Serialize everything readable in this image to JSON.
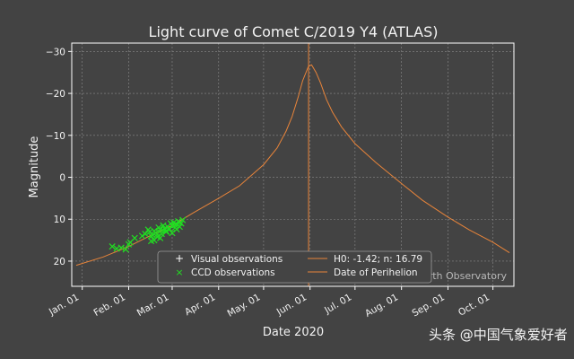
{
  "chart_data": {
    "type": "line",
    "title": "Light curve of Comet C/2019 Y4 (ATLAS)",
    "xlabel": "Date 2020",
    "ylabel": "Magnitude",
    "x_axis": "date",
    "xlim": [
      "2019-12-25",
      "2020-10-15"
    ],
    "ylim": [
      26,
      -32
    ],
    "y_inverted": true,
    "y_ticks": [
      -30,
      -20,
      -10,
      0,
      10,
      20
    ],
    "y_tick_labels": [
      "−30",
      "−20",
      "−10",
      "0",
      "10",
      "20"
    ],
    "x_ticks": [
      "2020-01-01",
      "2020-02-01",
      "2020-03-01",
      "2020-04-01",
      "2020-05-01",
      "2020-06-01",
      "2020-07-01",
      "2020-08-01",
      "2020-09-01",
      "2020-10-01"
    ],
    "x_tick_labels": [
      "Jan. 01",
      "Feb. 01",
      "Mar. 01",
      "Apr. 01",
      "May. 01",
      "Jun. 01",
      "Jul. 01",
      "Aug. 01",
      "Sep. 01",
      "Oct. 01"
    ],
    "grid": true,
    "legend_placement": "bottom-center",
    "series": [
      {
        "name": "H0: -1.42; n: 16.79",
        "kind": "line",
        "color": "#e8843a",
        "x": [
          "2019-12-28",
          "2020-01-15",
          "2020-02-01",
          "2020-02-15",
          "2020-03-01",
          "2020-03-15",
          "2020-04-01",
          "2020-04-15",
          "2020-05-01",
          "2020-05-10",
          "2020-05-16",
          "2020-05-20",
          "2020-05-24",
          "2020-05-27",
          "2020-05-31",
          "2020-06-02",
          "2020-06-05",
          "2020-06-08",
          "2020-06-12",
          "2020-06-16",
          "2020-06-22",
          "2020-07-01",
          "2020-07-15",
          "2020-08-01",
          "2020-08-15",
          "2020-09-01",
          "2020-09-15",
          "2020-10-01",
          "2020-10-12"
        ],
        "y": [
          21,
          19,
          16.5,
          14,
          11.5,
          8.5,
          5,
          2,
          -3,
          -7,
          -11,
          -14.5,
          -19,
          -23,
          -26.5,
          -26.8,
          -25,
          -22.5,
          -18.5,
          -15.5,
          -12,
          -8,
          -3.5,
          1.5,
          5.5,
          9.5,
          12.5,
          15.5,
          18
        ]
      },
      {
        "name": "Date of Perihelion",
        "kind": "vline",
        "color": "#e8843a",
        "x": "2020-05-31"
      },
      {
        "name": "Visual observations",
        "kind": "scatter",
        "marker": "+",
        "color": "#ffffff",
        "x": [],
        "y": []
      },
      {
        "name": "CCD observations",
        "kind": "scatter",
        "marker": "x",
        "color": "#22dd22",
        "x": [
          "2020-01-21",
          "2020-01-24",
          "2020-01-27",
          "2020-01-30",
          "2020-02-01",
          "2020-02-02",
          "2020-02-05",
          "2020-02-10",
          "2020-02-12",
          "2020-02-14",
          "2020-02-15",
          "2020-02-16",
          "2020-02-17",
          "2020-02-18",
          "2020-02-19",
          "2020-02-20",
          "2020-02-21",
          "2020-02-22",
          "2020-02-23",
          "2020-02-24",
          "2020-02-25",
          "2020-02-26",
          "2020-02-27",
          "2020-02-28",
          "2020-02-29",
          "2020-03-01",
          "2020-03-02",
          "2020-03-03",
          "2020-03-04",
          "2020-03-05",
          "2020-03-06",
          "2020-03-07",
          "2020-03-08",
          "2020-02-18",
          "2020-02-22",
          "2020-02-26",
          "2020-03-01",
          "2020-03-04",
          "2020-03-06",
          "2020-02-16",
          "2020-02-20",
          "2020-02-24",
          "2020-02-28",
          "2020-03-03"
        ],
        "y": [
          16.5,
          17,
          16.8,
          17.2,
          16,
          15.5,
          14.5,
          14,
          13.5,
          12.5,
          13,
          14,
          13.8,
          12.8,
          13.2,
          14.2,
          12,
          12.5,
          13.5,
          11.5,
          12.2,
          12.8,
          11.8,
          12.5,
          11,
          11.5,
          10.8,
          12,
          11.2,
          10.5,
          11.8,
          11,
          10.2,
          15,
          14.5,
          13,
          13.3,
          12.4,
          10.8,
          15.2,
          13.6,
          12.6,
          12.3,
          11.4
        ]
      }
    ],
    "legend_labels": [
      "Visual observations",
      "CCD observations",
      "H0: -1.42; n: 16.79",
      "Date of Perihelion"
    ],
    "annotation": "rth Observatory"
  },
  "watermark": "头条 @中国气象爱好者"
}
